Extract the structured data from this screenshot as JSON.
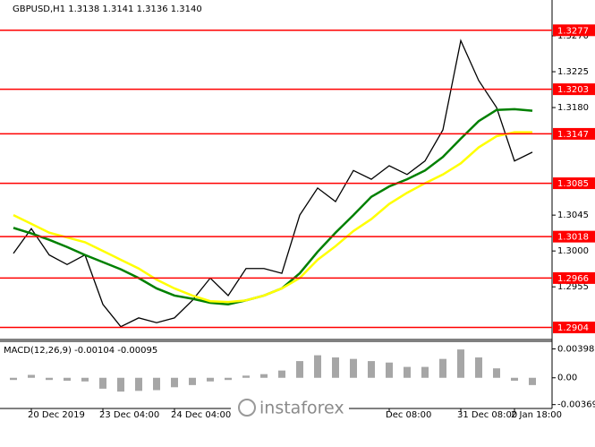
{
  "chart_data": [
    {
      "type": "line",
      "title": "GBPUSD,H1  1.3138 1.3141 1.3136 1.3140",
      "categories": [
        null,
        "20 Dec 2019",
        null,
        null,
        null,
        "23 Dec 04:00",
        null,
        null,
        null,
        "24 Dec 04:00",
        null,
        null,
        null,
        null,
        null,
        null,
        null,
        null,
        null,
        null,
        null,
        "Dec 08:00",
        null,
        null,
        null,
        "31 Dec 08:00",
        null,
        null,
        "2 Jan 18:00",
        null
      ],
      "series": [
        {
          "color": "#000000",
          "values": [
            1.2997,
            1.3028,
            1.2995,
            1.2983,
            1.2995,
            1.2933,
            1.2905,
            1.2916,
            1.291,
            1.2916,
            1.2938,
            1.2966,
            1.2944,
            1.2978,
            1.2978,
            1.2972,
            1.3045,
            1.3079,
            1.3062,
            1.3101,
            1.309,
            1.3107,
            1.3096,
            1.3113,
            1.3152,
            1.3264,
            1.3214,
            1.318,
            1.3113,
            1.3124
          ]
        },
        {
          "color": "#008000",
          "values": [
            1.3029,
            1.3022,
            1.3014,
            1.3005,
            1.2995,
            1.2986,
            1.2977,
            1.2966,
            1.2953,
            1.2944,
            1.294,
            1.2935,
            1.2933,
            1.2938,
            1.2944,
            1.2953,
            1.2972,
            1.2999,
            1.3023,
            1.3045,
            1.3068,
            1.3081,
            1.309,
            1.3101,
            1.3118,
            1.3141,
            1.3163,
            1.3177,
            1.3178,
            1.3176
          ]
        },
        {
          "color": "#ffff00",
          "values": [
            1.3045,
            1.3034,
            1.3023,
            1.3017,
            1.3011,
            1.3,
            1.2989,
            1.2978,
            1.2964,
            1.2953,
            1.2944,
            1.2937,
            1.2936,
            1.2938,
            1.2944,
            1.2953,
            1.2966,
            1.2989,
            1.3006,
            1.3025,
            1.304,
            1.3059,
            1.3073,
            1.3085,
            1.3096,
            1.311,
            1.313,
            1.3144,
            1.3149,
            1.3149
          ]
        }
      ],
      "levels": [
        1.3277,
        1.3203,
        1.3147,
        1.3085,
        1.3018,
        1.2966,
        1.2904
      ],
      "level_color": "#ff0000",
      "ylim": [
        1.289,
        1.3315
      ],
      "yticks": [
        {
          "value": 1.327,
          "label": "1.3270"
        },
        {
          "value": 1.3225,
          "label": "1.3225"
        },
        {
          "value": 1.318,
          "label": "1.3180"
        },
        {
          "value": 1.3045,
          "label": "1.3045"
        },
        {
          "value": 1.3,
          "label": "1.3000"
        },
        {
          "value": 1.2955,
          "label": "1.2955"
        }
      ]
    },
    {
      "type": "bar",
      "title": "MACD(12,26,9) -0.00104 -0.00095",
      "color": "#a6a6a6",
      "values": [
        -0.0003,
        0.0004,
        -0.0003,
        -0.0004,
        -0.0005,
        -0.0015,
        -0.0019,
        -0.0018,
        -0.0017,
        -0.0013,
        -0.001,
        -0.0005,
        -0.0003,
        0.0003,
        0.0005,
        0.001,
        0.0023,
        0.0031,
        0.0028,
        0.0026,
        0.0023,
        0.0021,
        0.0015,
        0.0015,
        0.0026,
        0.0039,
        0.0028,
        0.0013,
        -0.0004,
        -0.001
      ],
      "ylim": [
        -0.0041,
        0.0049
      ],
      "yticks": [
        0.00398,
        {
          "value": 0,
          "label": "0.00"
        },
        -0.00369
      ]
    }
  ],
  "watermark": "instaforex"
}
